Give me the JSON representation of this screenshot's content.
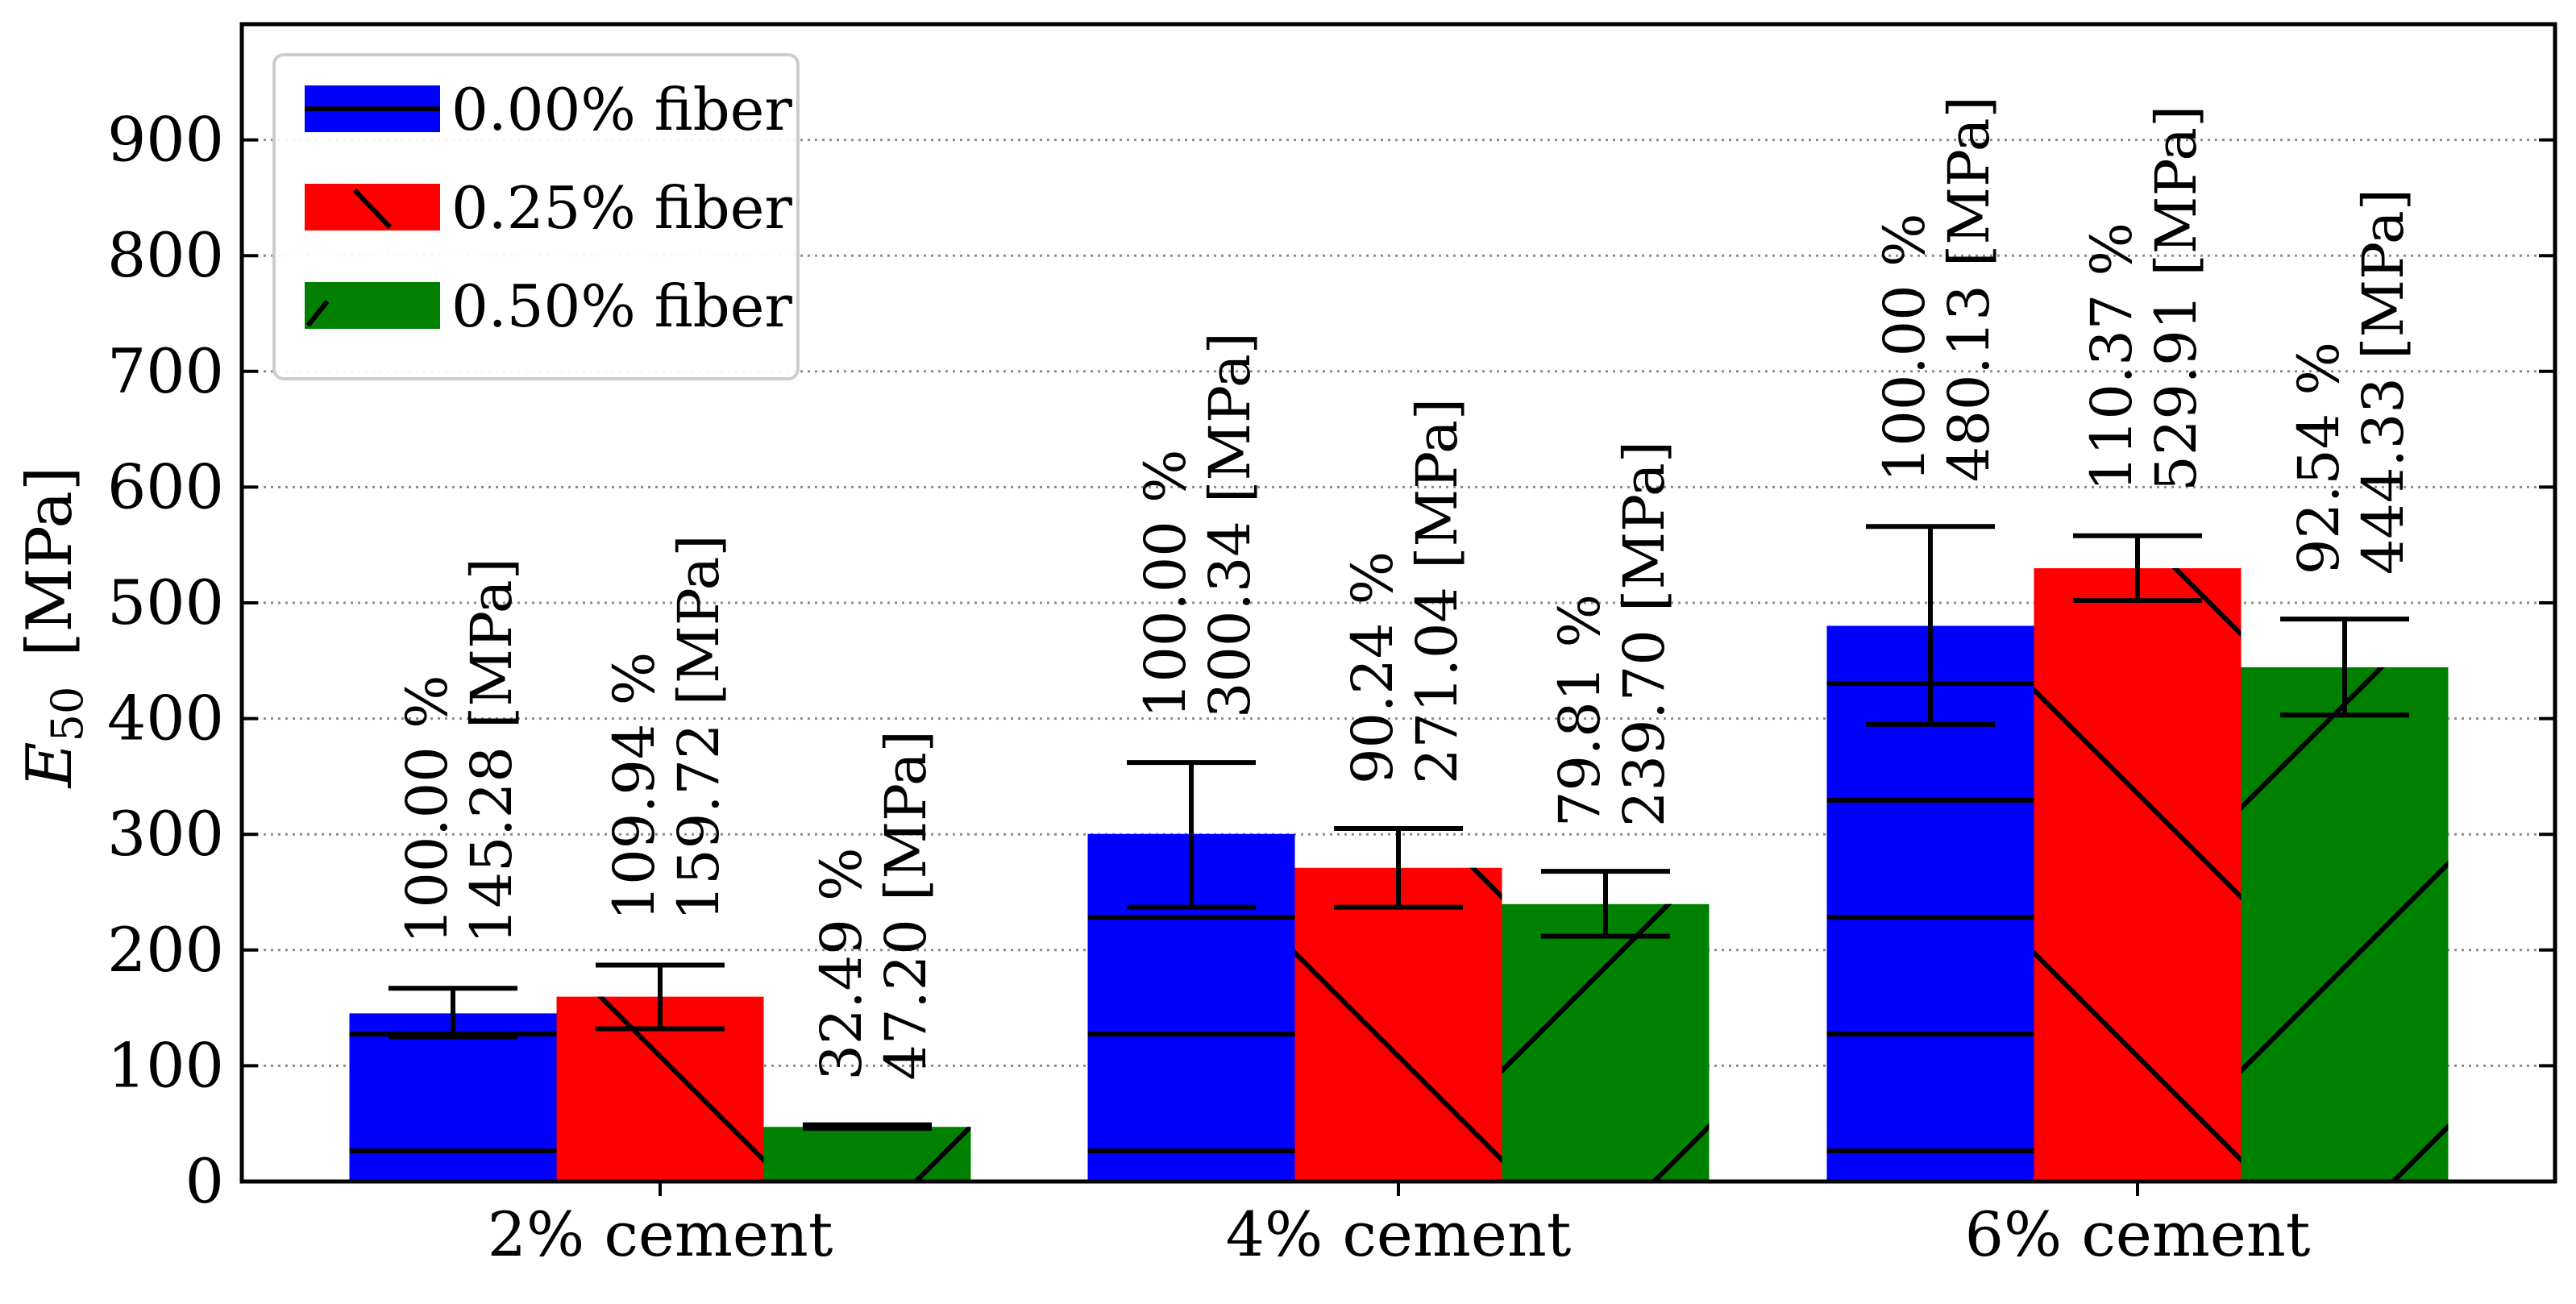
{
  "chart_data": {
    "type": "bar",
    "title": "",
    "xlabel": "",
    "ylabel": {
      "symbol": "E",
      "subscript": "50",
      "unit": "[MPa]"
    },
    "categories": [
      "2% cement",
      "4% cement",
      "6%  cement"
    ],
    "ylim": [
      0,
      1000
    ],
    "yticks": [
      0,
      100,
      200,
      300,
      400,
      500,
      600,
      700,
      800,
      900
    ],
    "grid": "horizontal-dotted",
    "legend_position": "top-left",
    "series": [
      {
        "name": "0.00% fiber",
        "color": "#0000FF",
        "hatch": "horizontal",
        "values": [
          145.28,
          300.34,
          480.13
        ],
        "errors": [
          [
            125,
            167
          ],
          [
            237,
            362
          ],
          [
            395,
            566
          ]
        ],
        "percent_labels": [
          "100.00 %",
          "100.00 %",
          "100.00 %"
        ],
        "value_labels": [
          "145.28 [MPa]",
          "300.34 [MPa]",
          "480.13 [MPa]"
        ]
      },
      {
        "name": "0.25% fiber",
        "color": "#FF0000",
        "hatch": "backslash",
        "values": [
          159.72,
          271.04,
          529.91
        ],
        "errors": [
          [
            132,
            187
          ],
          [
            237,
            305
          ],
          [
            502,
            558
          ]
        ],
        "percent_labels": [
          "109.94 %",
          "90.24 %",
          "110.37 %"
        ],
        "value_labels": [
          "159.72 [MPa]",
          "271.04 [MPa]",
          "529.91 [MPa]"
        ]
      },
      {
        "name": "0.50% fiber",
        "color": "#008000",
        "hatch": "slash",
        "values": [
          47.2,
          239.7,
          444.33
        ],
        "errors": [
          [
            46,
            49
          ],
          [
            212,
            268
          ],
          [
            403,
            486
          ]
        ],
        "percent_labels": [
          "32.49 %",
          "79.81 %",
          "92.54 %"
        ],
        "value_labels": [
          "47.20 [MPa]",
          "239.70 [MPa]",
          "444.33 [MPa]"
        ]
      }
    ]
  }
}
